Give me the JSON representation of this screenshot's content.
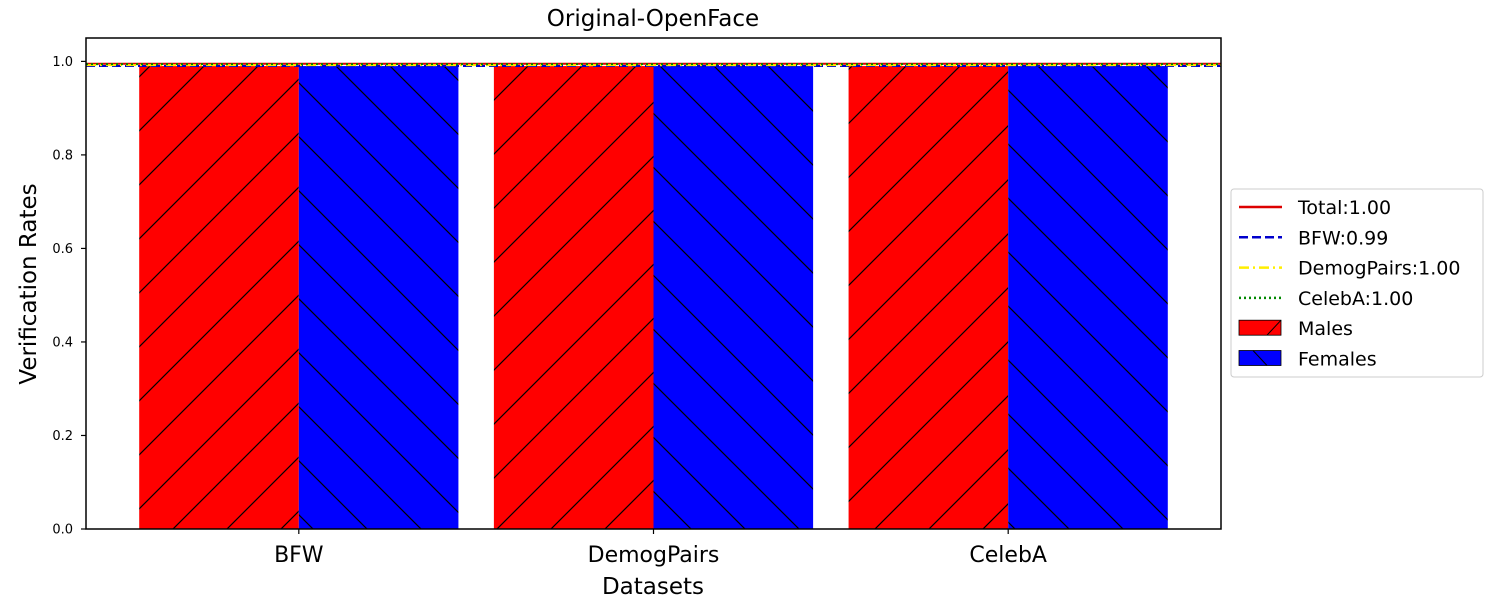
{
  "chart_data": {
    "type": "bar",
    "title": "Original-OpenFace",
    "xlabel": "Datasets",
    "ylabel": "Verification Rates",
    "categories": [
      "BFW",
      "DemogPairs",
      "CelebA"
    ],
    "ylim": [
      0.0,
      1.05
    ],
    "yticks": [
      {
        "value": 0.0,
        "label": "0.0"
      },
      {
        "value": 0.2,
        "label": "0.2"
      },
      {
        "value": 0.4,
        "label": "0.4"
      },
      {
        "value": 0.6,
        "label": "0.6"
      },
      {
        "value": 0.8,
        "label": "0.8"
      },
      {
        "value": 1.0,
        "label": "1.0"
      }
    ],
    "grid": false,
    "legend_placement": "right-outside",
    "series": [
      {
        "name": "Males",
        "values": [
          0.99,
          0.99,
          0.99
        ],
        "color": "#ff0000",
        "hatch": "forward-diagonal"
      },
      {
        "name": "Females",
        "values": [
          0.99,
          0.99,
          0.99
        ],
        "color": "#0000ff",
        "hatch": "back-diagonal"
      }
    ],
    "reference_lines": [
      {
        "label": "Total:1.00",
        "value": 0.995,
        "color": "#dd0000",
        "style": "solid"
      },
      {
        "label": "BFW:0.99",
        "value": 0.99,
        "color": "#0000cc",
        "style": "dashed"
      },
      {
        "label": "DemogPairs:1.00",
        "value": 0.992,
        "color": "#ffee00",
        "style": "dashdot"
      },
      {
        "label": "CelebA:1.00",
        "value": 0.994,
        "color": "#008800",
        "style": "dotted"
      }
    ]
  }
}
